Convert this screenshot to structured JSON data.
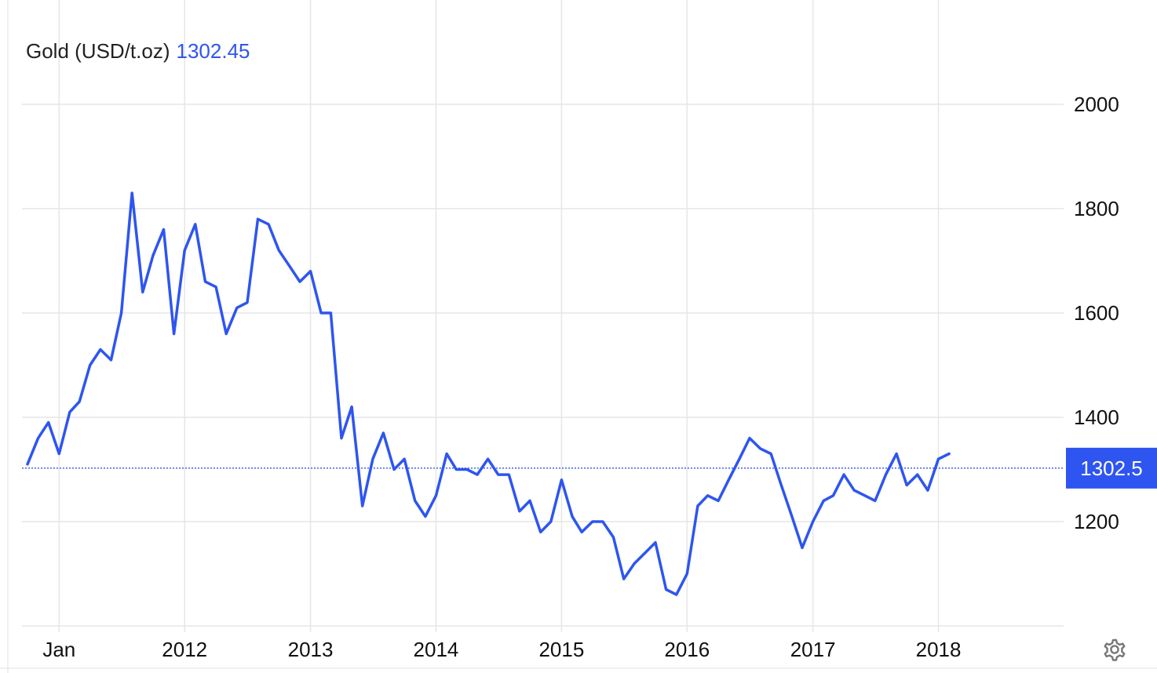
{
  "legend": {
    "label": "Gold (USD/t.oz)",
    "value": "1302.45",
    "value_color": "#2e55f0"
  },
  "last_value_label": "1302.5",
  "settings_icon": "gear-icon",
  "colors": {
    "line": "#2e55f0",
    "grid": "#e6e6e6",
    "axis_text": "#111111"
  },
  "chart_data": {
    "type": "line",
    "title": "Gold (USD/t.oz)",
    "xlabel": "",
    "ylabel": "",
    "y_axis_side": "right",
    "ylim": [
      1000,
      2200
    ],
    "yticks": [
      1200,
      1400,
      1600,
      1800,
      2000
    ],
    "xlim": [
      "2010-09-15",
      "2018-12-31"
    ],
    "xticks": [
      {
        "date": "2011-01-01",
        "label": "Jan"
      },
      {
        "date": "2012-01-01",
        "label": "2012"
      },
      {
        "date": "2013-01-01",
        "label": "2013"
      },
      {
        "date": "2014-01-01",
        "label": "2014"
      },
      {
        "date": "2015-01-01",
        "label": "2015"
      },
      {
        "date": "2016-01-01",
        "label": "2016"
      },
      {
        "date": "2017-01-01",
        "label": "2017"
      },
      {
        "date": "2018-01-01",
        "label": "2018"
      }
    ],
    "reference_line": 1302.5,
    "grid": true,
    "legend": "top-left",
    "series": [
      {
        "name": "Gold (USD/t.oz)",
        "x": [
          "2010-10-01",
          "2010-11-01",
          "2010-12-01",
          "2011-01-01",
          "2011-02-01",
          "2011-03-01",
          "2011-04-01",
          "2011-05-01",
          "2011-06-01",
          "2011-07-01",
          "2011-08-01",
          "2011-09-01",
          "2011-10-01",
          "2011-11-01",
          "2011-12-01",
          "2012-01-01",
          "2012-02-01",
          "2012-03-01",
          "2012-04-01",
          "2012-05-01",
          "2012-06-01",
          "2012-07-01",
          "2012-08-01",
          "2012-09-01",
          "2012-10-01",
          "2012-11-01",
          "2012-12-01",
          "2013-01-01",
          "2013-02-01",
          "2013-03-01",
          "2013-04-01",
          "2013-05-01",
          "2013-06-01",
          "2013-07-01",
          "2013-08-01",
          "2013-09-01",
          "2013-10-01",
          "2013-11-01",
          "2013-12-01",
          "2014-01-01",
          "2014-02-01",
          "2014-03-01",
          "2014-04-01",
          "2014-05-01",
          "2014-06-01",
          "2014-07-01",
          "2014-08-01",
          "2014-09-01",
          "2014-10-01",
          "2014-11-01",
          "2014-12-01",
          "2015-01-01",
          "2015-02-01",
          "2015-03-01",
          "2015-04-01",
          "2015-05-01",
          "2015-06-01",
          "2015-07-01",
          "2015-08-01",
          "2015-09-01",
          "2015-10-01",
          "2015-11-01",
          "2015-12-01",
          "2016-01-01",
          "2016-02-01",
          "2016-03-01",
          "2016-04-01",
          "2016-05-01",
          "2016-06-01",
          "2016-07-01",
          "2016-08-01",
          "2016-09-01",
          "2016-10-01",
          "2016-11-01",
          "2016-12-01",
          "2017-01-01",
          "2017-02-01",
          "2017-03-01",
          "2017-04-01",
          "2017-05-01",
          "2017-06-01",
          "2017-07-01",
          "2017-08-01",
          "2017-09-01",
          "2017-10-01",
          "2017-11-01",
          "2017-12-01",
          "2018-01-01",
          "2018-02-01"
        ],
        "y": [
          1310,
          1360,
          1390,
          1330,
          1410,
          1430,
          1500,
          1530,
          1510,
          1600,
          1830,
          1640,
          1710,
          1760,
          1560,
          1720,
          1770,
          1660,
          1650,
          1560,
          1610,
          1620,
          1780,
          1770,
          1720,
          1690,
          1660,
          1680,
          1600,
          1600,
          1360,
          1420,
          1230,
          1320,
          1370,
          1300,
          1320,
          1240,
          1210,
          1250,
          1330,
          1300,
          1300,
          1290,
          1320,
          1290,
          1290,
          1220,
          1240,
          1180,
          1200,
          1280,
          1210,
          1180,
          1200,
          1200,
          1170,
          1090,
          1120,
          1140,
          1160,
          1070,
          1060,
          1100,
          1230,
          1250,
          1240,
          1280,
          1320,
          1360,
          1340,
          1330,
          1270,
          1210,
          1150,
          1200,
          1240,
          1250,
          1290,
          1260,
          1250,
          1240,
          1290,
          1330,
          1270,
          1290,
          1260,
          1320,
          1330
        ]
      }
    ]
  }
}
